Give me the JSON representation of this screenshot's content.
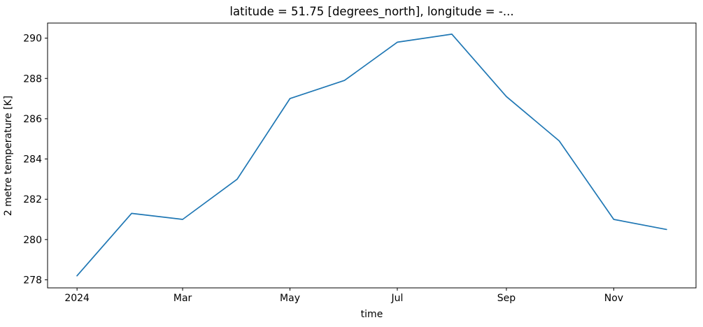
{
  "chart_data": {
    "type": "line",
    "title": "latitude = 51.75 [degrees_north], longitude = -...",
    "xlabel": "time",
    "ylabel": "2 metre temperature [K]",
    "line_color": "#1f77b4",
    "axis_color": "#000000",
    "grid": false,
    "legend_position": "none",
    "x_months": [
      "Jan 2024",
      "Feb 2024",
      "Mar 2024",
      "Apr 2024",
      "May 2024",
      "Jun 2024",
      "Jul 2024",
      "Aug 2024",
      "Sep 2024",
      "Oct 2024",
      "Nov 2024",
      "Dec 2024"
    ],
    "x_days": [
      0,
      31,
      60,
      91,
      121,
      152,
      182,
      213,
      244,
      274,
      305,
      335
    ],
    "values": [
      278.2,
      281.3,
      281.0,
      283.0,
      287.0,
      287.9,
      289.8,
      290.2,
      287.1,
      284.9,
      281.0,
      280.5
    ],
    "xlim": [
      -16.75,
      351.75
    ],
    "ylim": [
      277.6,
      290.75
    ],
    "xticks": [
      {
        "pos": 0,
        "label": "2024"
      },
      {
        "pos": 60,
        "label": "Mar"
      },
      {
        "pos": 121,
        "label": "May"
      },
      {
        "pos": 182,
        "label": "Jul"
      },
      {
        "pos": 244,
        "label": "Sep"
      },
      {
        "pos": 305,
        "label": "Nov"
      }
    ],
    "yticks": [
      278,
      280,
      282,
      284,
      286,
      288,
      290
    ]
  }
}
